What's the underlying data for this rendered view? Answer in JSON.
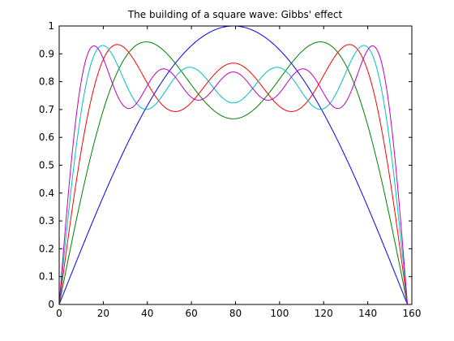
{
  "chart_data": {
    "type": "line",
    "title": "The building of a square wave: Gibbs' effect",
    "xlabel": "",
    "ylabel": "",
    "xlim": [
      0,
      160
    ],
    "ylim": [
      0,
      1
    ],
    "x_ticks": [
      0,
      20,
      40,
      60,
      80,
      100,
      120,
      140,
      160
    ],
    "y_ticks": [
      0,
      0.1,
      0.2,
      0.3,
      0.4,
      0.5,
      0.6,
      0.7,
      0.8,
      0.9,
      1
    ],
    "x_tick_labels": [
      "0",
      "20",
      "40",
      "60",
      "80",
      "100",
      "120",
      "140",
      "160"
    ],
    "y_tick_labels": [
      "0",
      "0.1",
      "0.2",
      "0.3",
      "0.4",
      "0.5",
      "0.6",
      "0.7",
      "0.8",
      "0.9",
      "1"
    ],
    "grid": false,
    "legend": "none",
    "x_range_of_data": [
      0,
      158
    ],
    "series": [
      {
        "color": "#0000ff",
        "harmonics": 1
      },
      {
        "color": "#008000",
        "harmonics": 3
      },
      {
        "color": "#ff0000",
        "harmonics": 5
      },
      {
        "color": "#00bfbf",
        "harmonics": 7
      },
      {
        "color": "#bf00bf",
        "harmonics": 9
      }
    ]
  }
}
